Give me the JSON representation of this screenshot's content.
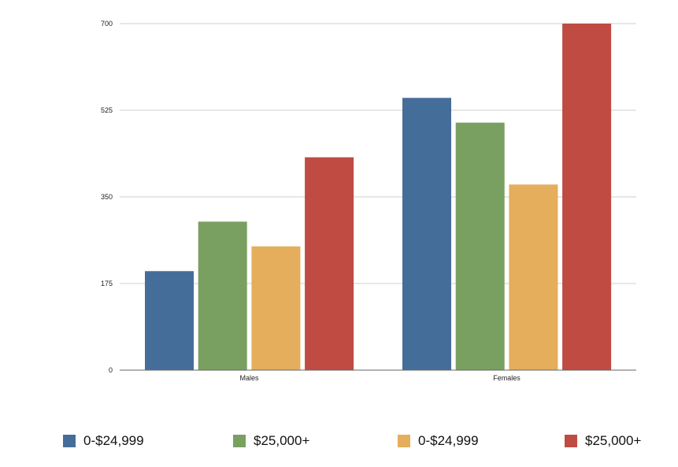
{
  "chart_data": {
    "type": "bar",
    "categories": [
      "Males",
      "Females"
    ],
    "series": [
      {
        "name": "0-$24,999",
        "color": "#456d9a",
        "values": [
          200,
          550
        ]
      },
      {
        "name": "$25,000+",
        "color": "#79a061",
        "values": [
          300,
          500
        ]
      },
      {
        "name": "0-$24,999",
        "color": "#e4ae5c",
        "values": [
          250,
          375
        ]
      },
      {
        "name": "$25,000+",
        "color": "#bf4b43",
        "values": [
          430,
          700
        ]
      }
    ],
    "yticks": [
      0,
      175,
      350,
      525,
      700
    ],
    "ylim": [
      0,
      700
    ],
    "title": "",
    "xlabel": "",
    "ylabel": "",
    "grid": true,
    "legend_position": "bottom"
  }
}
